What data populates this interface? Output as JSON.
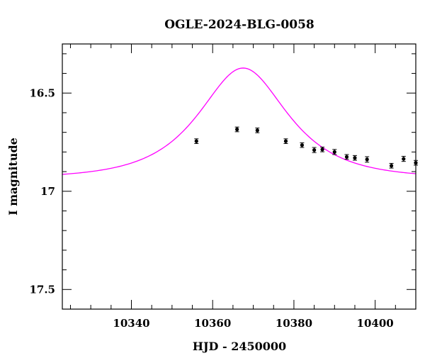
{
  "chart_data": {
    "type": "scatter",
    "title": "OGLE-2024-BLG-0058",
    "xlabel": "HJD - 2450000",
    "ylabel": "I magnitude",
    "xlim": [
      10323,
      10410
    ],
    "ylim": [
      16.25,
      17.6
    ],
    "y_inverted": true,
    "x_ticks": [
      10340,
      10360,
      10380,
      10400
    ],
    "x_tick_labels": [
      "10340",
      "10360",
      "10380",
      "10400"
    ],
    "y_ticks": [
      16.5,
      17,
      17.5
    ],
    "y_tick_labels": [
      "16.5",
      "17",
      "17.5"
    ],
    "x_minor_step": 5,
    "y_minor_step": 0.1,
    "series": [
      {
        "name": "observations",
        "x": [
          10356,
          10366,
          10371,
          10378,
          10382,
          10385,
          10387,
          10390,
          10393,
          10395,
          10398,
          10404,
          10407,
          10410
        ],
        "y": [
          16.745,
          16.685,
          16.69,
          16.745,
          16.765,
          16.79,
          16.787,
          16.8,
          16.825,
          16.83,
          16.838,
          16.87,
          16.835,
          16.855
        ],
        "yerr": [
          0.012,
          0.012,
          0.012,
          0.012,
          0.012,
          0.013,
          0.012,
          0.013,
          0.012,
          0.012,
          0.014,
          0.012,
          0.013,
          0.012
        ],
        "color": "#000000"
      },
      {
        "name": "model",
        "type": "line",
        "t0": 10367.5,
        "tE": 16,
        "u0": 0.7,
        "baseline_mag": 16.935,
        "color": "#ff00ff"
      }
    ]
  }
}
